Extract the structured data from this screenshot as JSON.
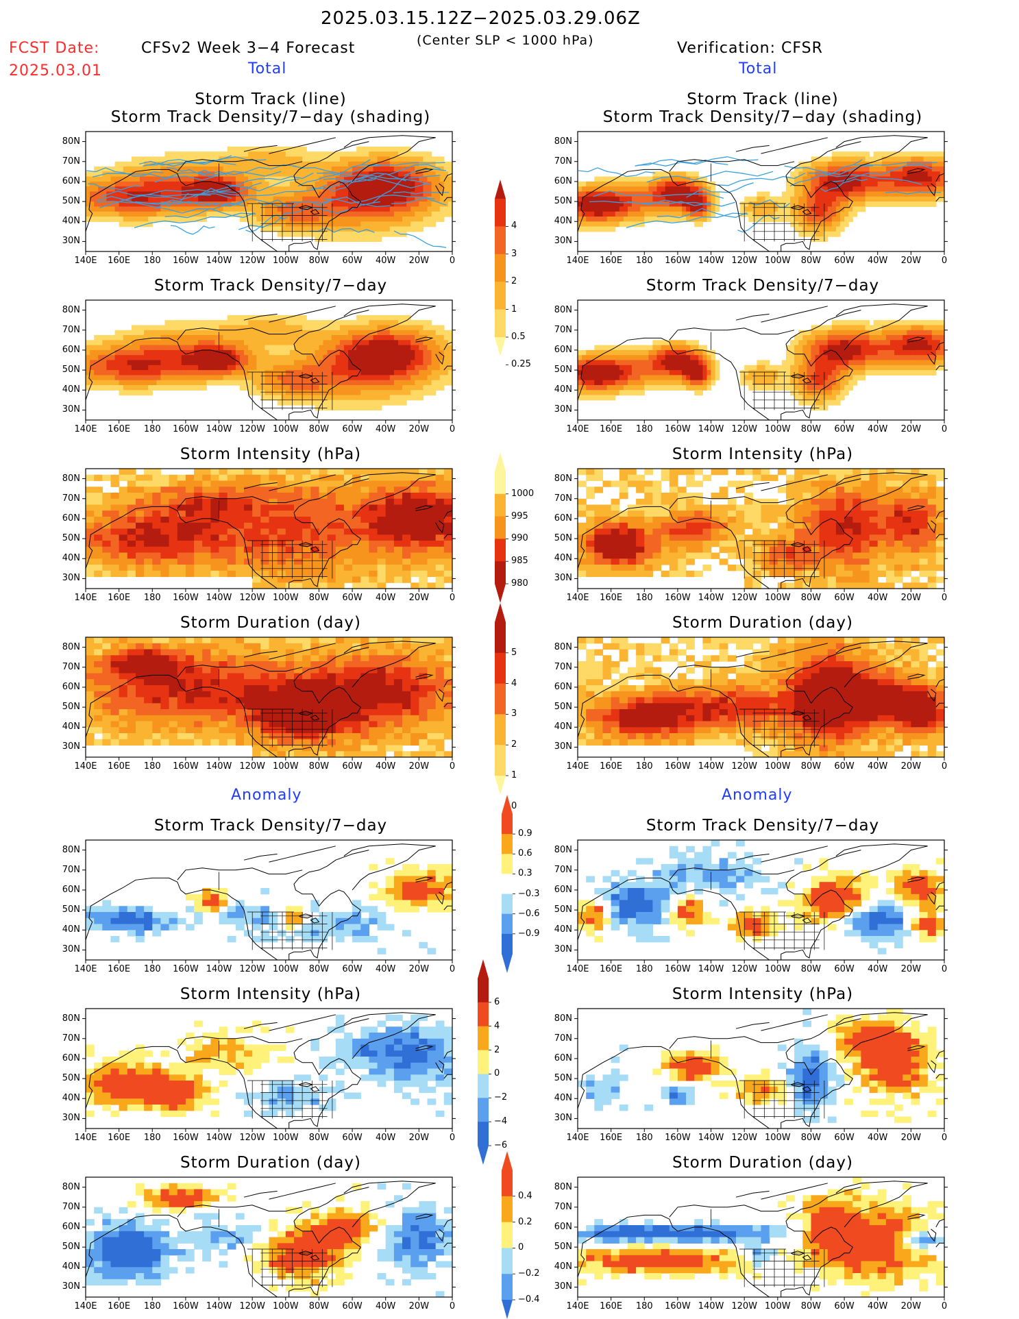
{
  "header": {
    "period": "2025.03.15.12Z−2025.03.29.06Z",
    "fcst_label": "FCST Date:",
    "fcst_date": "2025.03.01",
    "left_title": "CFSv2 Week 3−4 Forecast",
    "criterion": "(Center SLP < 1000 hPa)",
    "right_title": "Verification: CFSR",
    "section_total": "Total",
    "section_anomaly": "Anomaly"
  },
  "panel_titles": {
    "track_line": "Storm Track (line)",
    "track_density_shading": "Storm Track Density/7−day (shading)",
    "track_density": "Storm Track Density/7−day",
    "intensity": "Storm Intensity (hPa)",
    "duration": "Storm Duration (day)"
  },
  "axes": {
    "lat_labels": [
      "80N",
      "70N",
      "60N",
      "50N",
      "40N",
      "30N"
    ],
    "lon_labels": [
      "140E",
      "160E",
      "180",
      "160W",
      "140W",
      "120W",
      "100W",
      "80W",
      "60W",
      "40W",
      "20W",
      "0"
    ]
  },
  "colorbars": {
    "density_total": [
      "4",
      "3",
      "2",
      "1",
      "0.5",
      "0.25"
    ],
    "intensity_total": [
      "1000",
      "995",
      "990",
      "985",
      "980"
    ],
    "duration_total": [
      "5",
      "4",
      "3",
      "2",
      "1",
      "0"
    ],
    "density_anom": [
      "0.9",
      "0.6",
      "0.3",
      "−0.3",
      "−0.6",
      "−0.9"
    ],
    "intensity_anom": [
      "6",
      "4",
      "2",
      "0",
      "−2",
      "−4",
      "−6"
    ],
    "duration_anom": [
      "0.4",
      "0.2",
      "0",
      "−0.2",
      "−0.4"
    ]
  },
  "palettes": {
    "total": [
      "#fff59d",
      "#ffd966",
      "#fbb431",
      "#f7941d",
      "#f26522",
      "#e63312",
      "#b51c10"
    ],
    "anomaly": [
      "#2f6fd6",
      "#5aa0ef",
      "#a6dcf5",
      "#ffffff",
      "#fff27a",
      "#f9a81c",
      "#f04a20",
      "#b51c10"
    ],
    "track_line": "#3aa0e0"
  }
}
